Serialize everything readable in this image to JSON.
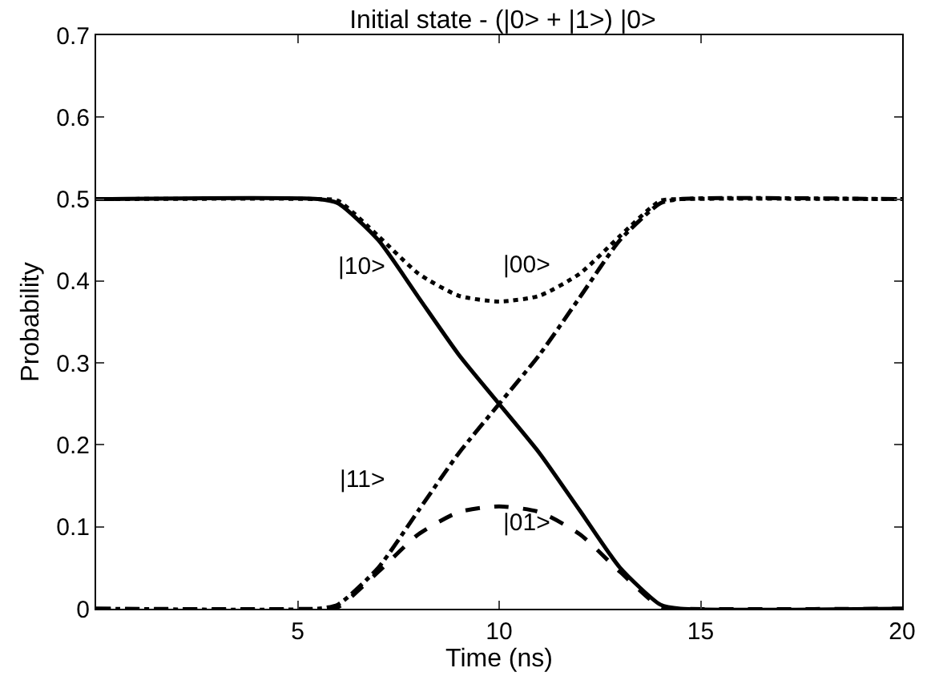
{
  "chart_data": {
    "type": "line",
    "title": "Initial state - (|0> + |1>) |0>",
    "xlabel": "Time (ns)",
    "ylabel": "Probability",
    "xlim": [
      0,
      20
    ],
    "xticks": [
      5,
      10,
      15,
      20
    ],
    "ylim": [
      0,
      0.7
    ],
    "yticks": [
      0,
      0.1,
      0.2,
      0.3,
      0.4,
      0.5,
      0.6,
      0.7
    ],
    "grid": false,
    "legend": false,
    "marker": "none",
    "x": [
      0,
      5.5,
      6,
      7,
      8,
      9,
      10,
      11,
      12,
      13,
      14,
      14.5,
      20
    ],
    "series": [
      {
        "name": "|00>",
        "color": "#000000",
        "line_style": "dotted",
        "values": [
          0.5,
          0.5,
          0.498,
          0.455,
          0.409,
          0.382,
          0.375,
          0.382,
          0.409,
          0.455,
          0.498,
          0.5,
          0.5
        ]
      },
      {
        "name": "|10>",
        "color": "#000000",
        "line_style": "solid",
        "values": [
          0.5,
          0.5,
          0.495,
          0.45,
          0.38,
          0.31,
          0.25,
          0.19,
          0.12,
          0.05,
          0.005,
          0,
          0
        ]
      },
      {
        "name": "|11>",
        "color": "#000000",
        "line_style": "dashdot",
        "values": [
          0,
          0,
          0.005,
          0.05,
          0.12,
          0.19,
          0.25,
          0.31,
          0.38,
          0.45,
          0.495,
          0.5,
          0.5
        ]
      },
      {
        "name": "|01>",
        "color": "#000000",
        "line_style": "dashed",
        "values": [
          0,
          0,
          0.002,
          0.045,
          0.091,
          0.118,
          0.125,
          0.118,
          0.091,
          0.045,
          0.002,
          0,
          0
        ]
      }
    ]
  }
}
